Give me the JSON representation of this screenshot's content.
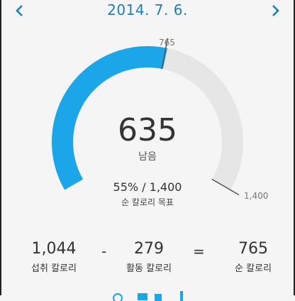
{
  "header": {
    "date": "2014. 7. 6.",
    "prev_icon": "chevron-left-icon",
    "next_icon": "chevron-right-icon"
  },
  "gauge": {
    "remaining": "635",
    "remaining_label": "남음",
    "goal_text": "55% / 1,400",
    "goal_label": "순 칼로리 목표",
    "marker_label": "765",
    "max_label": "1,400",
    "progress_fraction": 0.55,
    "marker_fraction": 0.546,
    "color_fill": "#1aa6e8",
    "color_track": "#e6e6e6"
  },
  "summary": {
    "intake_value": "1,044",
    "intake_label": "섭취 칼로리",
    "minus": "-",
    "activity_value": "279",
    "activity_label": "활동 칼로리",
    "equals": "=",
    "net_value": "765",
    "net_label": "순 칼로리"
  }
}
